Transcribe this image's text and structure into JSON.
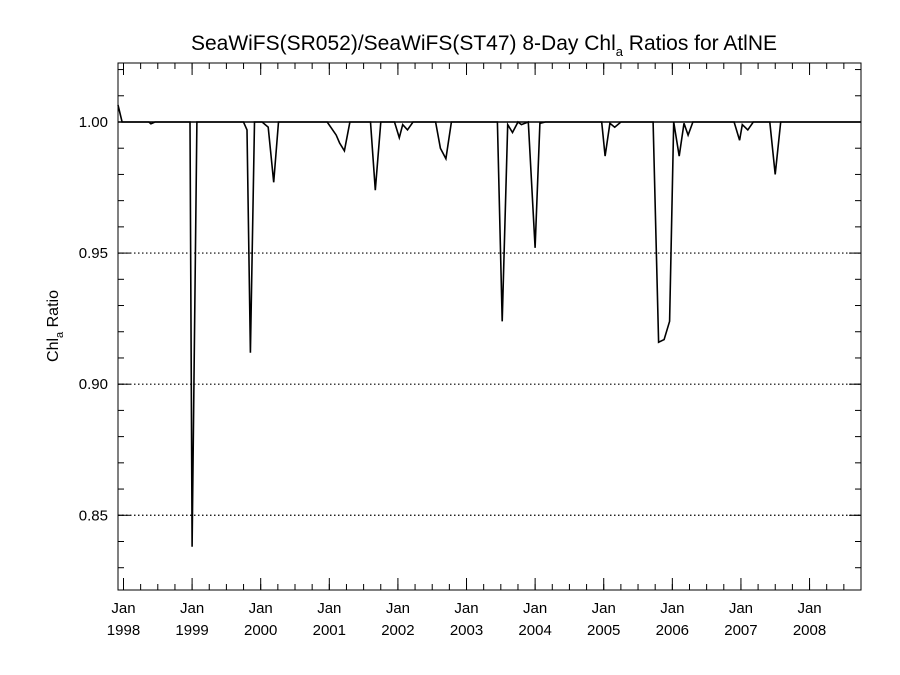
{
  "chart_data": {
    "type": "line",
    "title": "SeaWiFS(SR052)/SeaWiFS(ST47) 8-Day Chl_a Ratios for AtlNE",
    "title_parts": {
      "before": "SeaWiFS(SR052)/SeaWiFS(ST47) 8-Day Chl",
      "subscript": "a",
      "after": " Ratios for AtlNE"
    },
    "ylabel": "Chl_a Ratio",
    "ylabel_parts": {
      "before": "Chl",
      "subscript": "a",
      "after": " Ratio"
    },
    "xlabel": "",
    "ylim": [
      0.8215,
      1.0225
    ],
    "xlim": [
      1997.92,
      2008.75
    ],
    "yticks": [
      {
        "value": 0.85,
        "label": "0.85"
      },
      {
        "value": 0.9,
        "label": "0.90"
      },
      {
        "value": 0.95,
        "label": "0.95"
      },
      {
        "value": 1.0,
        "label": "1.00"
      }
    ],
    "xticks": [
      {
        "value": 1998,
        "month": "Jan",
        "year": "1998"
      },
      {
        "value": 1999,
        "month": "Jan",
        "year": "1999"
      },
      {
        "value": 2000,
        "month": "Jan",
        "year": "2000"
      },
      {
        "value": 2001,
        "month": "Jan",
        "year": "2001"
      },
      {
        "value": 2002,
        "month": "Jan",
        "year": "2002"
      },
      {
        "value": 2003,
        "month": "Jan",
        "year": "2003"
      },
      {
        "value": 2004,
        "month": "Jan",
        "year": "2004"
      },
      {
        "value": 2005,
        "month": "Jan",
        "year": "2005"
      },
      {
        "value": 2006,
        "month": "Jan",
        "year": "2006"
      },
      {
        "value": 2007,
        "month": "Jan",
        "year": "2007"
      },
      {
        "value": 2008,
        "month": "Jan",
        "year": "2008"
      }
    ],
    "minor_y_step": 0.01,
    "minor_x_step": 0.25,
    "grid": "dotted horizontal lines at 0.85, 0.90, 0.95",
    "reference_line": 1.0,
    "series": [
      {
        "color": "#000000",
        "points": [
          [
            1997.92,
            1.0065
          ],
          [
            1997.98,
            1.0
          ],
          [
            1998.37,
            1.0
          ],
          [
            1998.4,
            0.9993
          ],
          [
            1998.46,
            1.0
          ],
          [
            1998.97,
            1.0
          ],
          [
            1999.0,
            0.838
          ],
          [
            1999.07,
            1.0
          ],
          [
            1999.75,
            1.0
          ],
          [
            1999.8,
            0.997
          ],
          [
            1999.85,
            0.912
          ],
          [
            1999.91,
            1.0
          ],
          [
            2000.02,
            1.0
          ],
          [
            2000.11,
            0.998
          ],
          [
            2000.19,
            0.977
          ],
          [
            2000.26,
            1.0
          ],
          [
            2000.97,
            1.0
          ],
          [
            2001.1,
            0.995
          ],
          [
            2001.15,
            0.992
          ],
          [
            2001.22,
            0.989
          ],
          [
            2001.3,
            1.0
          ],
          [
            2001.6,
            1.0
          ],
          [
            2001.67,
            0.974
          ],
          [
            2001.75,
            1.0
          ],
          [
            2001.95,
            1.0
          ],
          [
            2002.02,
            0.994
          ],
          [
            2002.07,
            0.999
          ],
          [
            2002.14,
            0.997
          ],
          [
            2002.22,
            1.0
          ],
          [
            2002.55,
            1.0
          ],
          [
            2002.62,
            0.99
          ],
          [
            2002.7,
            0.986
          ],
          [
            2002.78,
            1.0
          ],
          [
            2003.45,
            1.0
          ],
          [
            2003.52,
            0.924
          ],
          [
            2003.6,
            0.999
          ],
          [
            2003.67,
            0.996
          ],
          [
            2003.75,
            1.0
          ],
          [
            2003.8,
            0.999
          ],
          [
            2003.9,
            1.0
          ],
          [
            2004.0,
            0.952
          ],
          [
            2004.07,
            0.9995
          ],
          [
            2004.15,
            1.0
          ],
          [
            2004.97,
            1.0
          ],
          [
            2005.02,
            0.987
          ],
          [
            2005.09,
            0.9995
          ],
          [
            2005.16,
            0.998
          ],
          [
            2005.25,
            1.0
          ],
          [
            2005.72,
            1.0
          ],
          [
            2005.8,
            0.916
          ],
          [
            2005.88,
            0.917
          ],
          [
            2005.96,
            0.924
          ],
          [
            2006.02,
            1.0
          ],
          [
            2006.1,
            0.987
          ],
          [
            2006.17,
            0.9995
          ],
          [
            2006.23,
            0.995
          ],
          [
            2006.3,
            1.0
          ],
          [
            2006.9,
            1.0
          ],
          [
            2006.98,
            0.993
          ],
          [
            2007.02,
            0.999
          ],
          [
            2007.1,
            0.997
          ],
          [
            2007.18,
            1.0
          ],
          [
            2007.42,
            1.0
          ],
          [
            2007.5,
            0.98
          ],
          [
            2007.58,
            1.0
          ],
          [
            2008.75,
            1.0
          ]
        ]
      }
    ]
  }
}
